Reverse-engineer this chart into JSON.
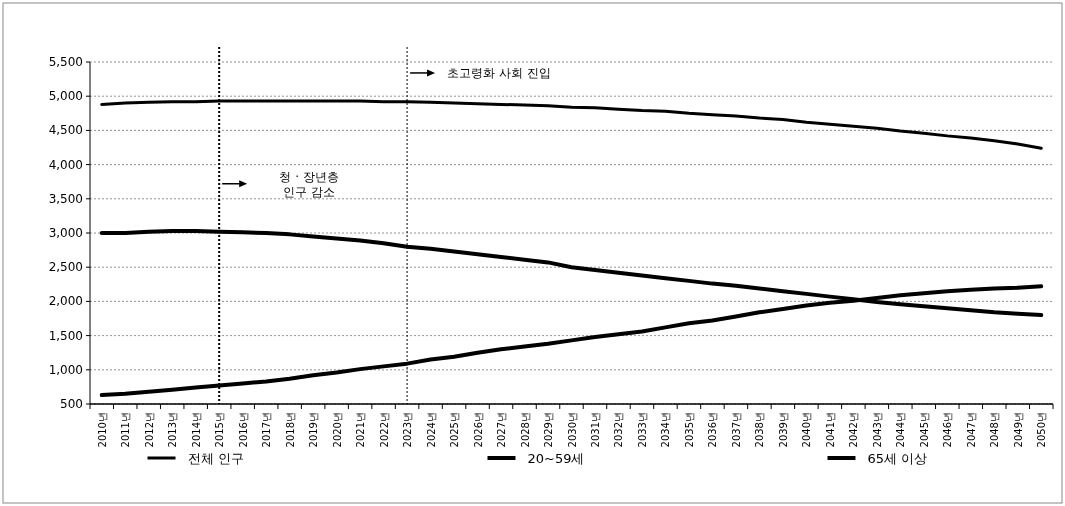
{
  "chart_data": {
    "type": "line",
    "categories": [
      "2010년",
      "2011년",
      "2012년",
      "2013년",
      "2014년",
      "2015년",
      "2016년",
      "2017년",
      "2018년",
      "2019년",
      "2020년",
      "2021년",
      "2022년",
      "2023년",
      "2024년",
      "2025년",
      "2026년",
      "2027년",
      "2028년",
      "2029년",
      "2030년",
      "2031년",
      "2032년",
      "2033년",
      "2034년",
      "2035년",
      "2036년",
      "2037년",
      "2038년",
      "2039년",
      "2040년",
      "2041년",
      "2042년",
      "2043년",
      "2044년",
      "2045년",
      "2046년",
      "2047년",
      "2048년",
      "2049년",
      "2050년"
    ],
    "series": [
      {
        "name": "전체 인구",
        "color": "#000000",
        "values": [
          4880,
          4900,
          4910,
          4920,
          4920,
          4930,
          4930,
          4930,
          4930,
          4930,
          4930,
          4930,
          4920,
          4920,
          4910,
          4900,
          4890,
          4880,
          4870,
          4860,
          4840,
          4830,
          4810,
          4790,
          4780,
          4750,
          4730,
          4710,
          4680,
          4660,
          4620,
          4590,
          4560,
          4530,
          4490,
          4460,
          4420,
          4390,
          4350,
          4300,
          4240
        ]
      },
      {
        "name": "20~59세",
        "color": "#000000",
        "values": [
          3000,
          3000,
          3020,
          3030,
          3030,
          3020,
          3010,
          3000,
          2980,
          2950,
          2920,
          2890,
          2850,
          2800,
          2770,
          2730,
          2690,
          2650,
          2610,
          2570,
          2500,
          2460,
          2420,
          2380,
          2340,
          2300,
          2260,
          2230,
          2190,
          2150,
          2110,
          2070,
          2030,
          1990,
          1960,
          1930,
          1900,
          1870,
          1840,
          1820,
          1800
        ]
      },
      {
        "name": "65세 이상",
        "color": "#000000",
        "values": [
          630,
          650,
          680,
          710,
          740,
          770,
          800,
          830,
          870,
          920,
          960,
          1010,
          1050,
          1090,
          1150,
          1190,
          1250,
          1300,
          1340,
          1380,
          1430,
          1480,
          1520,
          1560,
          1620,
          1680,
          1720,
          1780,
          1840,
          1890,
          1940,
          1980,
          2010,
          2050,
          2090,
          2120,
          2150,
          2170,
          2190,
          2200,
          2220
        ]
      }
    ],
    "ylim": [
      500,
      5500
    ],
    "yticks": [
      500,
      {
        "value": 1000,
        "label": "1,000"
      },
      {
        "value": 1500,
        "label": "1,500"
      },
      {
        "value": 2000,
        "label": "2,000"
      },
      {
        "value": 2500,
        "label": "2,500"
      },
      {
        "value": 3000,
        "label": "3,000"
      },
      {
        "value": 3500,
        "label": "3,500"
      },
      {
        "value": 4000,
        "label": "4,000"
      },
      {
        "value": 4500,
        "label": "4,500"
      },
      {
        "value": 5000,
        "label": "5,000"
      },
      {
        "value": 5500,
        "label": "5,500"
      }
    ],
    "ref_lines": [
      {
        "axis": "x",
        "value": "2015년",
        "color": "#000000",
        "line_style": "dotted"
      },
      {
        "axis": "x",
        "value": "2023년",
        "color": "#000000",
        "line_style": "dotted"
      }
    ],
    "annotations": [
      "청 · 장년층\n인구 감소",
      "초고령화 사회 진입"
    ],
    "grid": "y",
    "legend": "bottom",
    "marker": "none",
    "line_style": "solid"
  }
}
